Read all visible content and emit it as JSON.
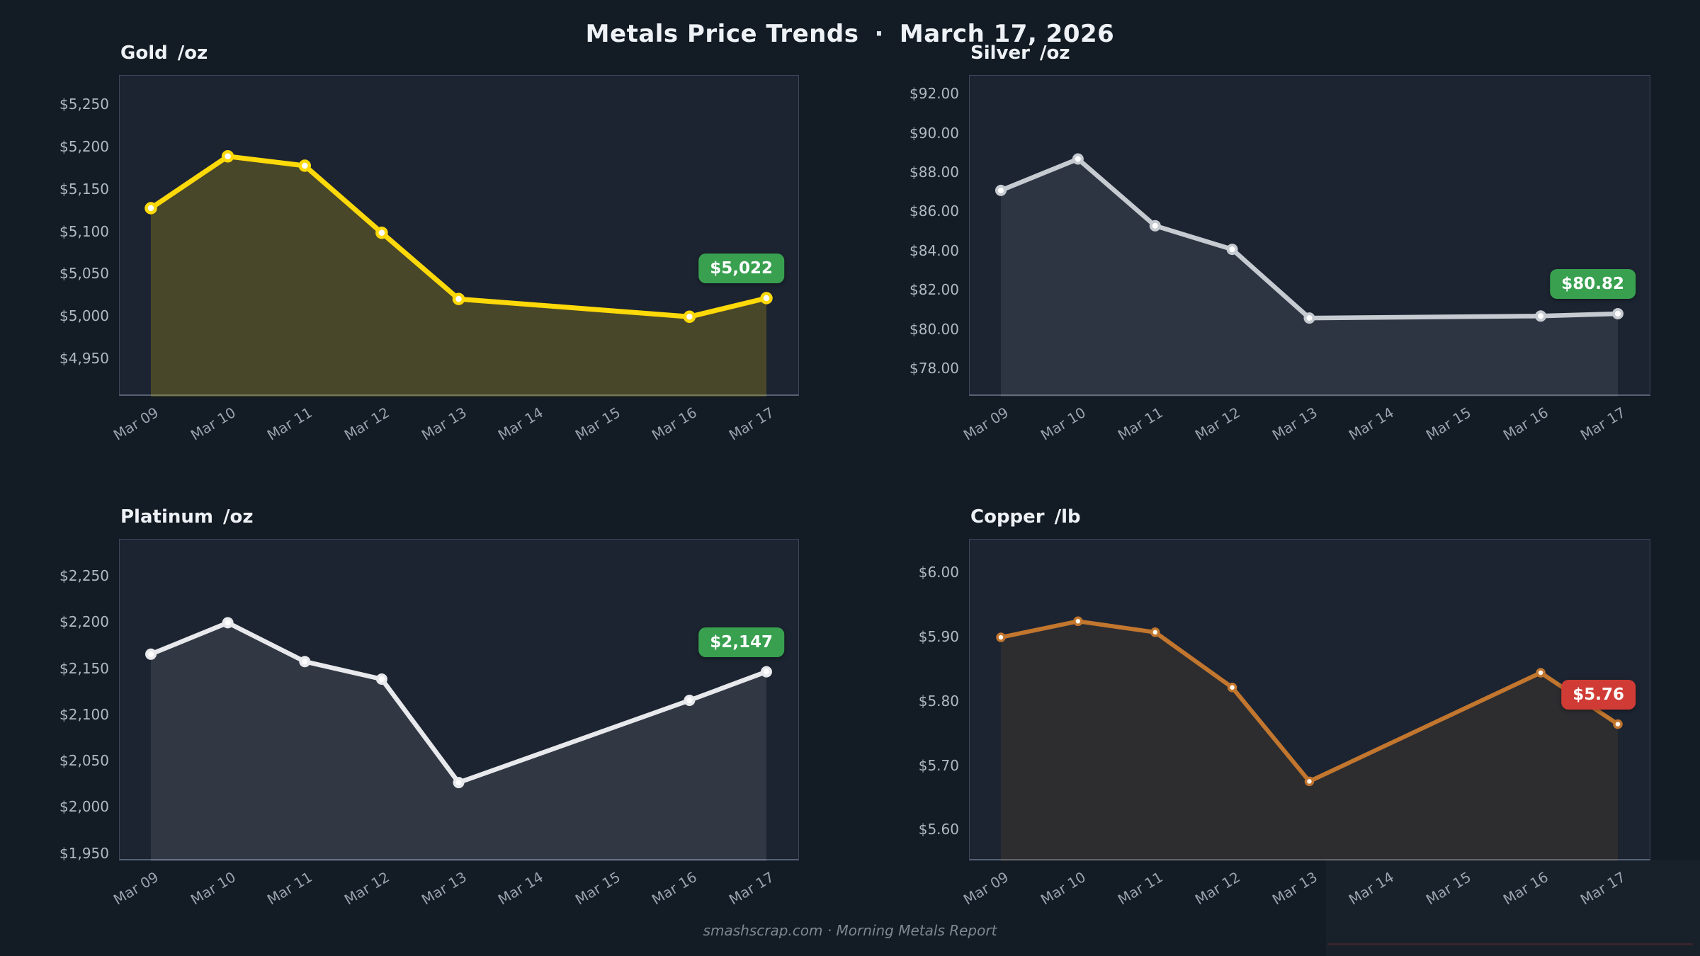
{
  "page": {
    "title": "Metals Price Trends",
    "title_separator": "·",
    "title_date": "March 17, 2026",
    "footer": "smashscrap.com  ·  Morning Metals Report",
    "background_color": "#131b25",
    "badge_up_color": "#38a04f",
    "badge_down_color": "#d03b35"
  },
  "chart_data": [
    {
      "type": "line",
      "title": "Gold",
      "unit": "/oz",
      "x": [
        "Mar 09",
        "Mar 10",
        "Mar 11",
        "Mar 12",
        "Mar 13",
        "Mar 14",
        "Mar 15",
        "Mar 16",
        "Mar 17"
      ],
      "values": [
        5128,
        5189,
        5178,
        5099,
        5021,
        null,
        null,
        5000,
        5022
      ],
      "y_ticks": [
        {
          "label": "$5,250",
          "value": 5250
        },
        {
          "label": "$5,200",
          "value": 5200
        },
        {
          "label": "$5,150",
          "value": 5150
        },
        {
          "label": "$5,100",
          "value": 5100
        },
        {
          "label": "$5,050",
          "value": 5050
        },
        {
          "label": "$5,000",
          "value": 5000
        },
        {
          "label": "$4,950",
          "value": 4950
        }
      ],
      "y_domain": [
        4906,
        5284
      ],
      "badge": {
        "label": "$5,022",
        "color": "#38a04f"
      },
      "line_color": "#ffd908",
      "fill_color": "rgba(255,216,8,0.20)",
      "line_width": 7,
      "marker": {
        "fill": "#ffffff",
        "radius": 6.5,
        "stroke_width": 4.5
      },
      "grid": false,
      "legend": null
    },
    {
      "type": "line",
      "title": "Silver",
      "unit": "/oz",
      "x": [
        "Mar 09",
        "Mar 10",
        "Mar 11",
        "Mar 12",
        "Mar 13",
        "Mar 14",
        "Mar 15",
        "Mar 16",
        "Mar 17"
      ],
      "values": [
        87.1,
        88.7,
        85.3,
        84.1,
        80.6,
        null,
        null,
        80.7,
        80.82
      ],
      "y_ticks": [
        {
          "label": "$92.00",
          "value": 92
        },
        {
          "label": "$90.00",
          "value": 90
        },
        {
          "label": "$88.00",
          "value": 88
        },
        {
          "label": "$86.00",
          "value": 86
        },
        {
          "label": "$84.00",
          "value": 84
        },
        {
          "label": "$82.00",
          "value": 82
        },
        {
          "label": "$80.00",
          "value": 80
        },
        {
          "label": "$78.00",
          "value": 78
        }
      ],
      "y_domain": [
        76.6,
        92.94
      ],
      "badge": {
        "label": "$80.82",
        "color": "#38a04f"
      },
      "line_color": "#c6cbd1",
      "fill_color": "rgba(205,210,216,0.10)",
      "line_width": 6.5,
      "marker": {
        "fill": "#ffffff",
        "radius": 6,
        "stroke_width": 4
      },
      "grid": false,
      "legend": null
    },
    {
      "type": "line",
      "title": "Platinum",
      "unit": "/oz",
      "x": [
        "Mar 09",
        "Mar 10",
        "Mar 11",
        "Mar 12",
        "Mar 13",
        "Mar 14",
        "Mar 15",
        "Mar 16",
        "Mar 17"
      ],
      "values": [
        2166,
        2200,
        2158,
        2139,
        2027,
        null,
        null,
        2116,
        2147
      ],
      "y_ticks": [
        {
          "label": "$2,250",
          "value": 2250
        },
        {
          "label": "$2,200",
          "value": 2200
        },
        {
          "label": "$2,150",
          "value": 2150
        },
        {
          "label": "$2,100",
          "value": 2100
        },
        {
          "label": "$2,050",
          "value": 2050
        },
        {
          "label": "$2,000",
          "value": 2000
        },
        {
          "label": "$1,950",
          "value": 1950
        }
      ],
      "y_domain": [
        1942,
        2290
      ],
      "badge": {
        "label": "$2,147",
        "color": "#38a04f"
      },
      "line_color": "#e8e9ec",
      "fill_color": "rgba(232,233,236,0.10)",
      "line_width": 6.5,
      "marker": {
        "fill": "#ffffff",
        "radius": 6,
        "stroke_width": 4
      },
      "grid": false,
      "legend": null
    },
    {
      "type": "line",
      "title": "Copper",
      "unit": "/lb",
      "x": [
        "Mar 09",
        "Mar 10",
        "Mar 11",
        "Mar 12",
        "Mar 13",
        "Mar 14",
        "Mar 15",
        "Mar 16",
        "Mar 17"
      ],
      "values": [
        5.9,
        5.925,
        5.908,
        5.822,
        5.676,
        null,
        null,
        5.845,
        5.765
      ],
      "y_ticks": [
        {
          "label": "$6.00",
          "value": 6.0
        },
        {
          "label": "$5.90",
          "value": 5.9
        },
        {
          "label": "$5.80",
          "value": 5.8
        },
        {
          "label": "$5.70",
          "value": 5.7
        },
        {
          "label": "$5.60",
          "value": 5.6
        }
      ],
      "y_domain": [
        5.552,
        6.052
      ],
      "badge": {
        "label": "$5.76",
        "color": "#d03b35"
      },
      "line_color": "#c2762e",
      "fill_color": "rgba(194,118,46,0.11)",
      "line_width": 6,
      "marker": {
        "fill": "#fff8ef",
        "radius": 5,
        "stroke_width": 3.5
      },
      "grid": false,
      "legend": null
    }
  ]
}
